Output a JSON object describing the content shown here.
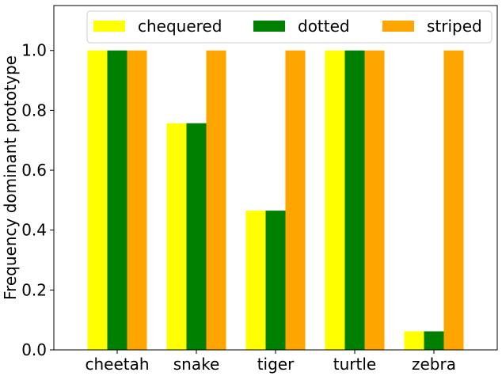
{
  "chart_data": {
    "type": "bar",
    "categories": [
      "cheetah",
      "snake",
      "tiger",
      "turtle",
      "zebra"
    ],
    "series": [
      {
        "name": "chequered",
        "color": "#ffff00",
        "values": [
          1.0,
          0.757,
          0.465,
          1.0,
          0.062
        ]
      },
      {
        "name": "dotted",
        "color": "#008000",
        "values": [
          1.0,
          0.757,
          0.465,
          1.0,
          0.062
        ]
      },
      {
        "name": "striped",
        "color": "#ffa500",
        "values": [
          1.0,
          1.0,
          1.0,
          1.0,
          1.0
        ]
      }
    ],
    "title": "",
    "xlabel": "",
    "ylabel": "Frequency dominant prototype",
    "ylim": [
      0,
      1.15
    ],
    "yticks": [
      "0.0",
      "0.2",
      "0.4",
      "0.6",
      "0.8",
      "1.0"
    ],
    "grid": false,
    "legend": {
      "placement": "top",
      "columns": 3
    }
  }
}
